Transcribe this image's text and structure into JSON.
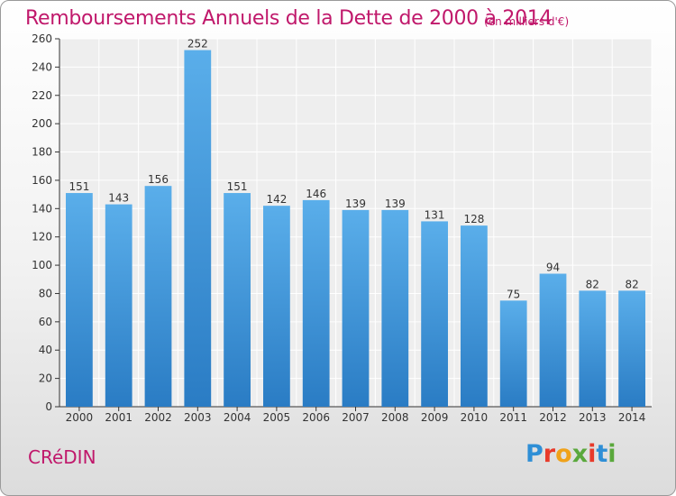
{
  "header": {
    "title": "Remboursements Annuels de la Dette de 2000 à 2014",
    "unit_note": "(en milliers d'€)"
  },
  "footer": {
    "city": "CRéDIN",
    "logo_letters": [
      "P",
      "r",
      "o",
      "x",
      "i",
      "t",
      "i"
    ],
    "logo_colors": [
      "#2f8fd6",
      "#e83a2a",
      "#f0a21a",
      "#5aa83c",
      "#e83a2a",
      "#2f8fd6",
      "#5aa83c"
    ]
  },
  "chart_data": {
    "type": "bar",
    "title": "Remboursements Annuels de la Dette de 2000 à 2014",
    "xlabel": "",
    "ylabel": "",
    "categories": [
      "2000",
      "2001",
      "2002",
      "2003",
      "2004",
      "2005",
      "2006",
      "2007",
      "2008",
      "2009",
      "2010",
      "2011",
      "2012",
      "2013",
      "2014"
    ],
    "values": [
      151,
      143,
      156,
      252,
      151,
      142,
      146,
      139,
      139,
      131,
      128,
      75,
      94,
      82,
      82
    ],
    "ylim": [
      0,
      260
    ],
    "yticks": [
      0,
      20,
      40,
      60,
      80,
      100,
      120,
      140,
      160,
      180,
      200,
      220,
      240,
      260
    ],
    "grid": true,
    "colors": {
      "bar": "#4d9fe2",
      "bar_dark": "#2a7cc4",
      "text": "#c0186b",
      "axis": "#333333"
    }
  }
}
